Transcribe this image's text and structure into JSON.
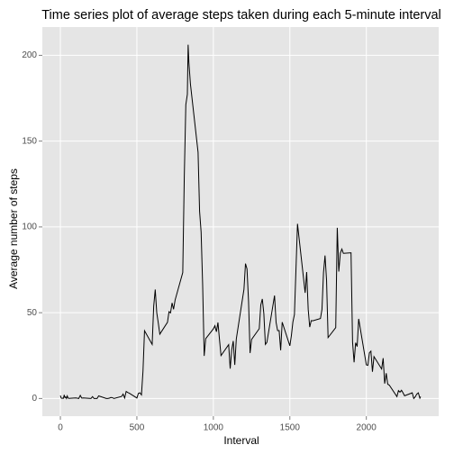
{
  "chart_data": {
    "type": "line",
    "title": "Time series plot of average steps taken during each 5-minute interval",
    "x_label": "Interval",
    "y_label": "Average number of steps",
    "color": "#000000",
    "grid": true,
    "xlim": [
      -118,
      2473
    ],
    "ylim": [
      -10.3,
      216.5
    ],
    "xticks": [
      0,
      500,
      1000,
      1500,
      2000
    ],
    "yticks": [
      0,
      50,
      100,
      150,
      200
    ],
    "x": [
      0,
      5,
      10,
      15,
      20,
      25,
      30,
      35,
      40,
      45,
      50,
      55,
      100,
      110,
      120,
      130,
      140,
      150,
      200,
      210,
      220,
      230,
      240,
      250,
      300,
      310,
      320,
      330,
      340,
      350,
      400,
      410,
      420,
      430,
      440,
      450,
      500,
      510,
      520,
      530,
      540,
      550,
      600,
      610,
      620,
      630,
      640,
      650,
      700,
      710,
      720,
      730,
      740,
      750,
      800,
      810,
      820,
      830,
      835,
      840,
      850,
      900,
      910,
      920,
      930,
      940,
      950,
      1000,
      1010,
      1020,
      1030,
      1040,
      1050,
      1100,
      1110,
      1120,
      1130,
      1140,
      1150,
      1200,
      1210,
      1220,
      1230,
      1240,
      1250,
      1300,
      1310,
      1320,
      1330,
      1340,
      1350,
      1400,
      1410,
      1420,
      1430,
      1440,
      1450,
      1500,
      1510,
      1520,
      1530,
      1540,
      1550,
      1600,
      1610,
      1620,
      1630,
      1640,
      1650,
      1700,
      1710,
      1720,
      1730,
      1740,
      1750,
      1800,
      1810,
      1820,
      1830,
      1840,
      1850,
      1900,
      1910,
      1920,
      1930,
      1940,
      1950,
      2000,
      2010,
      2020,
      2030,
      2040,
      2050,
      2100,
      2110,
      2120,
      2130,
      2140,
      2150,
      2200,
      2210,
      2220,
      2230,
      2240,
      2250,
      2300,
      2310,
      2320,
      2330,
      2340,
      2350,
      2355
    ],
    "values": [
      1.7,
      0.3,
      0.1,
      0.2,
      0.1,
      2.1,
      0.5,
      0.9,
      0,
      1.5,
      0.3,
      0.1,
      0.3,
      0.2,
      0,
      1.8,
      0.2,
      0.3,
      0,
      1.1,
      0,
      0,
      0,
      1.5,
      0,
      0,
      0.2,
      0.6,
      0.5,
      0,
      1.2,
      2.6,
      0.3,
      4.1,
      3.5,
      3.1,
      0.3,
      3,
      3.3,
      2.1,
      16,
      39.5,
      31.5,
      53.8,
      63.5,
      50,
      44,
      37.5,
      44.4,
      50.6,
      49.9,
      55.7,
      52,
      57.4,
      73.4,
      129.4,
      171.2,
      177.3,
      206.2,
      195.9,
      183.4,
      143.5,
      109.1,
      97,
      66.2,
      24.8,
      34.9,
      40.6,
      42.4,
      38.9,
      44.3,
      34.5,
      25,
      31.4,
      17.4,
      28.4,
      33.5,
      19.6,
      34.7,
      63.6,
      78.6,
      75.5,
      56.6,
      26.5,
      34.4,
      40.7,
      54.5,
      58,
      49.5,
      31.5,
      32.7,
      60,
      44.4,
      39.6,
      39.6,
      28.1,
      44.5,
      30.7,
      36.6,
      44.6,
      48.9,
      75.2,
      101.8,
      61.6,
      73.7,
      52,
      41.6,
      45.4,
      45.3,
      46.6,
      51.9,
      73.4,
      83.3,
      69,
      35.5,
      41.3,
      99.5,
      74,
      84.7,
      87.1,
      84.6,
      84.9,
      32.8,
      21.1,
      32.5,
      30.3,
      46.4,
      19.6,
      19.3,
      26.6,
      27.6,
      15.6,
      24.4,
      17.2,
      23.5,
      8.7,
      14.7,
      8.3,
      7.8,
      1.1,
      4.6,
      3.7,
      4.8,
      3.3,
      1.6,
      3.3,
      0,
      1,
      2.6,
      3.3,
      0.2,
      1.1
    ]
  }
}
